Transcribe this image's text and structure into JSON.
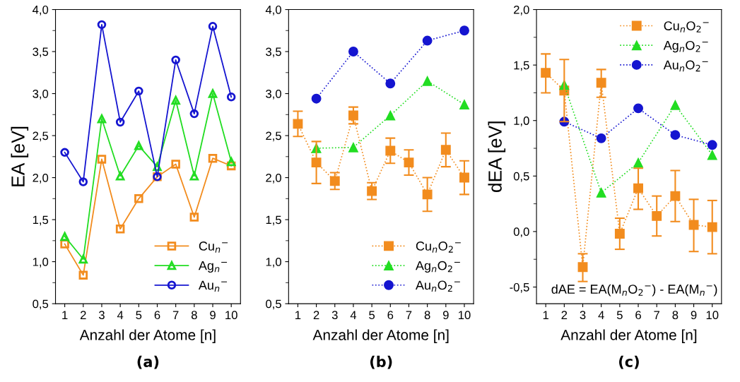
{
  "chart_data": [
    {
      "type": "line",
      "title": "(a)",
      "xlabel": "Anzahl der Atome [n]",
      "ylabel": "EA [eV]",
      "categories": [
        "1",
        "2",
        "3",
        "4",
        "5",
        "6",
        "7",
        "8",
        "9",
        "10"
      ],
      "ylim": [
        0.5,
        4.0
      ],
      "yticks": [
        {
          "value": 0.5,
          "label": "0,5"
        },
        {
          "value": 1.0,
          "label": "1,0"
        },
        {
          "value": 1.5,
          "label": "1,5"
        },
        {
          "value": 2.0,
          "label": "2,0"
        },
        {
          "value": 2.5,
          "label": "2,5"
        },
        {
          "value": 3.0,
          "label": "3,0"
        },
        {
          "value": 3.5,
          "label": "3,5"
        },
        {
          "value": 4.0,
          "label": "4,0"
        }
      ],
      "legend": "bottom right",
      "grid": false,
      "line_style": "solid",
      "series": [
        {
          "name": "Cu$_{n}$$^{−}$",
          "color": "#f28c1e",
          "marker": "square",
          "values": [
            1.21,
            0.84,
            2.22,
            1.39,
            1.75,
            2.01,
            2.16,
            1.53,
            2.23,
            2.14
          ]
        },
        {
          "name": "Ag$_{n}$$^{−}$",
          "color": "#22dd22",
          "marker": "triangle",
          "values": [
            1.3,
            1.03,
            2.7,
            2.02,
            2.38,
            2.13,
            2.92,
            2.02,
            3.0,
            2.19
          ]
        },
        {
          "name": "Au$_{n}$$^{−}$",
          "color": "#1515d0",
          "marker": "circle",
          "values": [
            2.3,
            1.95,
            3.82,
            2.66,
            3.03,
            2.01,
            3.4,
            2.76,
            3.8,
            2.96
          ]
        }
      ]
    },
    {
      "type": "line",
      "title": "(b)",
      "xlabel": "Anzahl der Atome [n]",
      "categories": [
        "1",
        "2",
        "3",
        "4",
        "5",
        "6",
        "7",
        "8",
        "9",
        "10"
      ],
      "ylim": [
        0.5,
        4.0
      ],
      "yticks": [
        {
          "value": 0.5,
          "label": "0,5"
        },
        {
          "value": 1.0,
          "label": "1,0"
        },
        {
          "value": 1.5,
          "label": "1,5"
        },
        {
          "value": 2.0,
          "label": "2,0"
        },
        {
          "value": 2.5,
          "label": "2,5"
        },
        {
          "value": 3.0,
          "label": "3,0"
        },
        {
          "value": 3.5,
          "label": "3,5"
        },
        {
          "value": 4.0,
          "label": "4,0"
        }
      ],
      "legend": "bottom right",
      "grid": false,
      "line_style": "dotted",
      "series": [
        {
          "name": "Cu$_{n}$O$_{2}$$^{−}$",
          "color": "#f28c1e",
          "marker": "square",
          "values": [
            2.64,
            2.18,
            1.96,
            2.74,
            1.84,
            2.32,
            2.18,
            1.8,
            2.33,
            2.0
          ],
          "errors": [
            [
              2.49,
              2.79
            ],
            [
              1.93,
              2.43
            ],
            [
              1.86,
              2.06
            ],
            [
              2.64,
              2.84
            ],
            [
              1.74,
              1.94
            ],
            [
              2.17,
              2.47
            ],
            [
              2.03,
              2.33
            ],
            [
              1.6,
              2.0
            ],
            [
              2.13,
              2.53
            ],
            [
              1.8,
              2.2
            ]
          ]
        },
        {
          "name": "Ag$_{n}$O$_{2}$$^{−}$",
          "color": "#22dd22",
          "marker": "triangle",
          "values": [
            null,
            2.35,
            null,
            2.36,
            null,
            2.74,
            null,
            3.15,
            null,
            2.87
          ]
        },
        {
          "name": "Au$_{n}$O$_{2}$$^{−}$",
          "color": "#1515d0",
          "marker": "circle",
          "values": [
            null,
            2.94,
            null,
            3.5,
            null,
            3.12,
            null,
            3.63,
            null,
            3.75
          ]
        }
      ]
    },
    {
      "type": "line",
      "title": "(c)",
      "xlabel": "Anzahl der Atome [n]",
      "ylabel": "dEA [eV]",
      "categories": [
        "1",
        "2",
        "3",
        "4",
        "5",
        "6",
        "7",
        "8",
        "9",
        "10"
      ],
      "ylim": [
        -0.65,
        2.0
      ],
      "yticks": [
        {
          "value": -0.5,
          "label": "-0,5"
        },
        {
          "value": 0.0,
          "label": "0,0"
        },
        {
          "value": 0.5,
          "label": "0,5"
        },
        {
          "value": 1.0,
          "label": "1,0"
        },
        {
          "value": 1.5,
          "label": "1,5"
        },
        {
          "value": 2.0,
          "label": "2,0"
        }
      ],
      "legend": "top right",
      "grid": false,
      "line_style": "dotted",
      "annotations": [
        "dAE = EA(M$_{n}$O$_{2}$$^{−}$) - EA(M$_{n}$$^{−}$)"
      ],
      "series": [
        {
          "name": "Cu$_{n}$O$_{2}$$^{−}$",
          "color": "#f28c1e",
          "marker": "square",
          "values": [
            1.43,
            1.27,
            -0.32,
            1.34,
            -0.02,
            0.39,
            0.14,
            0.32,
            0.06,
            0.04
          ],
          "errors": [
            [
              1.25,
              1.6
            ],
            [
              0.99,
              1.55
            ],
            [
              -0.45,
              -0.2
            ],
            [
              1.21,
              1.46
            ],
            [
              -0.16,
              0.12
            ],
            [
              0.2,
              0.57
            ],
            [
              -0.04,
              0.32
            ],
            [
              0.09,
              0.55
            ],
            [
              -0.18,
              0.29
            ],
            [
              -0.2,
              0.28
            ]
          ]
        },
        {
          "name": "Ag$_{n}$O$_{2}$$^{−}$",
          "color": "#22dd22",
          "marker": "triangle",
          "values": [
            null,
            1.32,
            null,
            0.35,
            null,
            0.62,
            null,
            1.14,
            null,
            0.69
          ]
        },
        {
          "name": "Au$_{n}$O$_{2}$$^{−}$",
          "color": "#1515d0",
          "marker": "circle",
          "values": [
            null,
            0.99,
            null,
            0.84,
            null,
            1.11,
            null,
            0.87,
            null,
            0.78
          ]
        }
      ]
    }
  ]
}
